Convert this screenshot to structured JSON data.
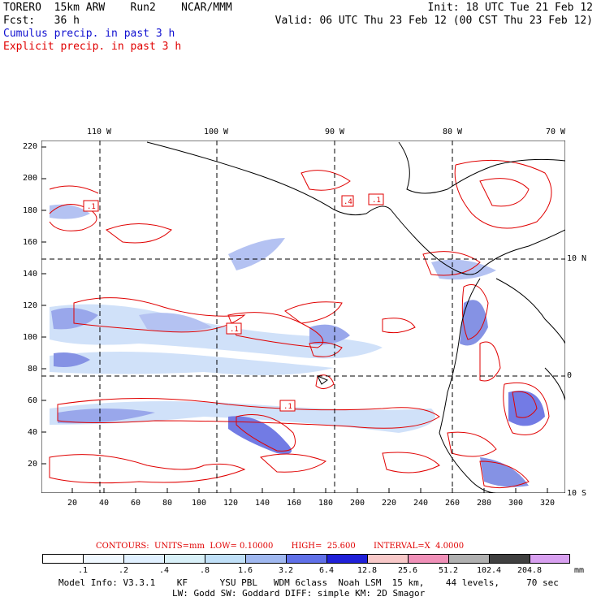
{
  "header": {
    "line1_left": "TORERO  15km ARW    Run2    NCAR/MMM",
    "line1_right": "Init: 18 UTC Tue 21 Feb 12",
    "line2_left": "Fcst:   36 h",
    "line2_right": "Valid: 06 UTC Thu 23 Feb 12 (00 CST Thu 23 Feb 12)",
    "field1": "Cumulus precip. in past 3 h",
    "field2": "Explicit precip. in past 3 h"
  },
  "map": {
    "lon_labels": [
      "110 W",
      "100 W",
      "90 W",
      "80 W",
      "70 W"
    ],
    "lat_labels": [
      "10 N",
      "0",
      "10 S"
    ],
    "grid_y_ticks": [
      "220",
      "200",
      "180",
      "160",
      "140",
      "120",
      "100",
      "80",
      "60",
      "40",
      "20"
    ],
    "grid_x_ticks": [
      "20",
      "40",
      "60",
      "80",
      "100",
      "120",
      "140",
      "160",
      "180",
      "200",
      "220",
      "240",
      "260",
      "280",
      "300",
      "320"
    ],
    "contour_labels": [
      ".1",
      ".4",
      ".1",
      ".1",
      ".1"
    ]
  },
  "contour_info": {
    "text": "CONTOURS:  UNITS=mm  LOW= 0.10000       HIGH=  25.600       INTERVAL=X  4.0000"
  },
  "legend": {
    "labels": [
      ".1",
      ".2",
      ".4",
      ".8",
      "1.6",
      "3.2",
      "6.4",
      "12.8",
      "25.6",
      "51.2",
      "102.4",
      "204.8"
    ],
    "unit": "mm",
    "colors": [
      "#ffffff",
      "#f0f8ff",
      "#e0f0ff",
      "#d8f0f8",
      "#c0e0f8",
      "#a0b8f0",
      "#8088e8",
      "#4040e0",
      "#2020d8",
      "#f8c8c8",
      "#f090b8",
      "#b0b0b0",
      "#404040",
      "#d8a0f0"
    ]
  },
  "footer": {
    "line1": "Model Info: V3.3.1    KF      YSU PBL   WDM 6class  Noah LSM  15 km,    44 levels,     70 sec",
    "line2": "LW: Godd SW: Goddard DIFF: simple KM: 2D Smagor"
  }
}
